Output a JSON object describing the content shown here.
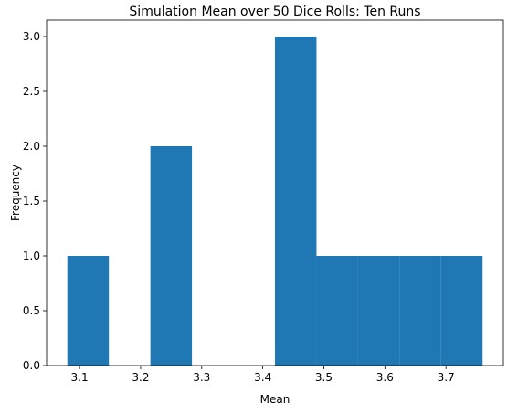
{
  "chart_data": {
    "type": "bar",
    "title": "Simulation Mean over 50 Dice Rolls: Ten Runs",
    "xlabel": "Mean",
    "ylabel": "Frequency",
    "bar_color": "#1f77b4",
    "xlim": [
      3.046,
      3.794
    ],
    "ylim": [
      0.0,
      3.15
    ],
    "xticks": [
      {
        "value": 3.1,
        "label": "3.1"
      },
      {
        "value": 3.2,
        "label": "3.2"
      },
      {
        "value": 3.3,
        "label": "3.3"
      },
      {
        "value": 3.4,
        "label": "3.4"
      },
      {
        "value": 3.5,
        "label": "3.5"
      },
      {
        "value": 3.6,
        "label": "3.6"
      },
      {
        "value": 3.7,
        "label": "3.7"
      }
    ],
    "yticks": [
      {
        "value": 0.0,
        "label": "0.0"
      },
      {
        "value": 0.5,
        "label": "0.5"
      },
      {
        "value": 1.0,
        "label": "1.0"
      },
      {
        "value": 1.5,
        "label": "1.5"
      },
      {
        "value": 2.0,
        "label": "2.0"
      },
      {
        "value": 2.5,
        "label": "2.5"
      },
      {
        "value": 3.0,
        "label": "3.0"
      }
    ],
    "bins": [
      {
        "x0": 3.08,
        "x1": 3.148,
        "count": 1
      },
      {
        "x0": 3.148,
        "x1": 3.216,
        "count": 0
      },
      {
        "x0": 3.216,
        "x1": 3.284,
        "count": 2
      },
      {
        "x0": 3.284,
        "x1": 3.352,
        "count": 0
      },
      {
        "x0": 3.352,
        "x1": 3.42,
        "count": 0
      },
      {
        "x0": 3.42,
        "x1": 3.488,
        "count": 3
      },
      {
        "x0": 3.488,
        "x1": 3.556,
        "count": 1
      },
      {
        "x0": 3.556,
        "x1": 3.624,
        "count": 1
      },
      {
        "x0": 3.624,
        "x1": 3.692,
        "count": 1
      },
      {
        "x0": 3.692,
        "x1": 3.76,
        "count": 1
      }
    ]
  }
}
